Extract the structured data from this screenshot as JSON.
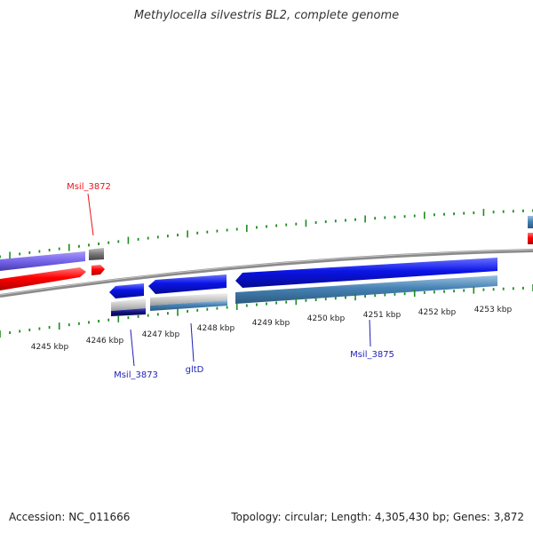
{
  "title": "Methylocella silvestris BL2, complete genome",
  "footer": {
    "accession_label": "Accession: NC_011666",
    "topology_label": "Topology: circular; Length: 4,305,430 bp; Genes: 3,872"
  },
  "ruler": {
    "ticks": [
      "4245 kbp",
      "4246 kbp",
      "4247 kbp",
      "4248 kbp",
      "4249 kbp",
      "4250 kbp",
      "4251 kbp",
      "4252 kbp",
      "4253 kbp"
    ]
  },
  "genes": {
    "msil_3872": {
      "label": "Msil_3872",
      "color": "#e8151b"
    },
    "msil_3873": {
      "label": "Msil_3873",
      "color": "#1f1fb8"
    },
    "gltd": {
      "label": "gltD",
      "color": "#1f1fb8"
    },
    "msil_3875": {
      "label": "Msil_3875",
      "color": "#1f1fb8"
    }
  },
  "colors": {
    "forward_cds": "#7b68ee",
    "forward_feature": "#ff0000",
    "reverse_cds": "#0a14e6",
    "reverse_feature": "#4682b4",
    "tick": "#1e8c1e",
    "backbone": "#8a8a8a"
  }
}
